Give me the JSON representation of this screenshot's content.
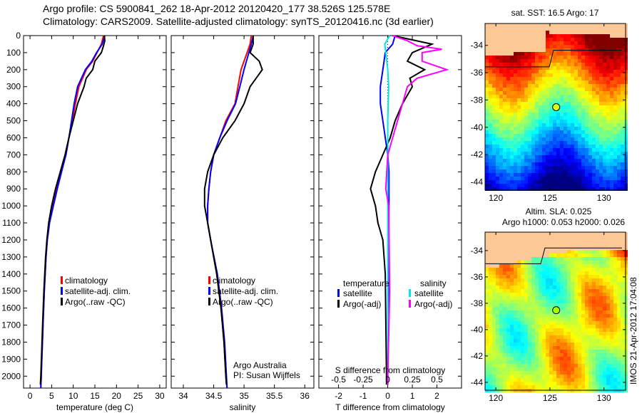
{
  "header": {
    "line1": "Argo profile: CS 5900841_262 18-Apr-2012 20120420_177 38.526S 125.578E",
    "line2": "Climatology: CARS2009. Satellite-adjusted climatology: synTS_20120416.nc (3d earlier)"
  },
  "credit": "IMOS 21-Apr-2012 17:04:08",
  "chart_data": [
    {
      "type": "line",
      "id": "temperature",
      "xlabel": "temperature (deg C)",
      "ylabel": "depth",
      "xlim": [
        -1.5,
        31.5
      ],
      "ylim": [
        2070,
        0
      ],
      "xticks": [
        0,
        5,
        10,
        15,
        20,
        25,
        30
      ],
      "yticks": [
        0,
        100,
        200,
        300,
        400,
        500,
        600,
        700,
        800,
        900,
        1000,
        1100,
        1200,
        1300,
        1400,
        1500,
        1600,
        1700,
        1800,
        1900,
        2000
      ],
      "legend": [
        "climatology",
        "satellite-adj. clim.",
        "Argo(..raw -QC)"
      ],
      "legend_position": "lower-right",
      "series": [
        {
          "name": "climatology",
          "color": "#ff0000",
          "depth": [
            0,
            50,
            100,
            150,
            200,
            300,
            400,
            500,
            600,
            700,
            800,
            900,
            1000,
            1100,
            1200,
            1300,
            1500,
            1700,
            2000,
            2070
          ],
          "values": [
            17,
            16.5,
            15.5,
            14.5,
            13,
            11.3,
            10.5,
            9.8,
            9,
            8.3,
            7.2,
            6.2,
            5.3,
            4.5,
            4,
            3.7,
            3.3,
            3,
            2.6,
            2.5
          ]
        },
        {
          "name": "satellite-adj. clim.",
          "color": "#0000ff",
          "depth": [
            0,
            50,
            100,
            150,
            200,
            300,
            400,
            500,
            600,
            700,
            800,
            900,
            1000,
            1100,
            1200,
            1300,
            1500,
            1700,
            2000,
            2070
          ],
          "values": [
            17.3,
            16.7,
            15.4,
            14.3,
            12.8,
            11.0,
            10.2,
            9.6,
            9,
            8.3,
            7.3,
            6.3,
            5.4,
            4.5,
            4,
            3.7,
            3.3,
            3,
            2.6,
            2.5
          ]
        },
        {
          "name": "Argo(..raw -QC)",
          "color": "#000000",
          "depth": [
            0,
            30,
            60,
            100,
            150,
            200,
            250,
            300,
            400,
            500,
            600,
            700,
            800,
            900,
            1000,
            1100,
            1200,
            1300,
            1500,
            1700,
            2000,
            2050
          ],
          "values": [
            17.2,
            17.3,
            17,
            16.5,
            15,
            14.5,
            13,
            12.5,
            11,
            10,
            9,
            8.1,
            7,
            5.9,
            5.0,
            4.3,
            3.9,
            3.6,
            3.2,
            2.9,
            2.5,
            2.4
          ]
        }
      ]
    },
    {
      "type": "line",
      "id": "salinity",
      "xlabel": "salinity",
      "xlim": [
        33.8,
        36.15
      ],
      "ylim": [
        2070,
        0
      ],
      "xticks": [
        34,
        34.5,
        35,
        35.5,
        36
      ],
      "legend": [
        "climatology",
        "satellite-adj. clim.",
        "Argo(..raw -QC)"
      ],
      "legend_position": "lower-right",
      "annotation": [
        "Argo Australia",
        "PI: Susan Wijffels"
      ],
      "series": [
        {
          "name": "climatology",
          "color": "#ff0000",
          "depth": [
            0,
            50,
            100,
            200,
            300,
            400,
            500,
            600,
            700,
            800,
            900,
            1000,
            1100,
            1200,
            1400,
            1600,
            1800,
            2000,
            2070
          ],
          "values": [
            35.12,
            35.1,
            35.05,
            34.95,
            34.9,
            34.85,
            34.7,
            34.6,
            34.5,
            34.45,
            34.42,
            34.4,
            34.4,
            34.45,
            34.55,
            34.62,
            34.67,
            34.7,
            34.72
          ]
        },
        {
          "name": "satellite-adj. clim.",
          "color": "#0000ff",
          "depth": [
            0,
            50,
            100,
            200,
            300,
            400,
            500,
            600,
            700,
            800,
            900,
            1000,
            1100,
            1200,
            1400,
            1600,
            1800,
            2000,
            2070
          ],
          "values": [
            35.15,
            35.12,
            35.08,
            35.0,
            34.93,
            34.86,
            34.72,
            34.6,
            34.5,
            34.45,
            34.42,
            34.4,
            34.4,
            34.45,
            34.56,
            34.63,
            34.68,
            34.71,
            34.72
          ]
        },
        {
          "name": "Argo(..raw -QC)",
          "color": "#000000",
          "depth": [
            0,
            50,
            100,
            150,
            200,
            250,
            300,
            400,
            500,
            600,
            700,
            800,
            900,
            1000,
            1100,
            1200,
            1400,
            1600,
            1800,
            2000,
            2050
          ],
          "values": [
            35.15,
            35.15,
            35.1,
            35.25,
            35.3,
            35.2,
            35.1,
            35.0,
            34.85,
            34.65,
            34.5,
            34.4,
            34.35,
            34.35,
            34.4,
            34.45,
            34.55,
            34.62,
            34.67,
            34.7,
            34.71
          ]
        }
      ]
    },
    {
      "type": "line",
      "id": "difference",
      "xlabel": "T difference from climatology",
      "x2label": "S difference from climatology",
      "xlim": [
        -2.8,
        3.0
      ],
      "ylim": [
        2070,
        0
      ],
      "xticks": [
        -2,
        -1,
        0,
        1,
        2
      ],
      "x2ticks": [
        -0.5,
        -0.25,
        0,
        0.25,
        0.5
      ],
      "x2tick_labels": [
        "-0.5",
        "-0.25",
        "0",
        "0.25",
        "0.5"
      ],
      "legend_groups": [
        {
          "title": "temperature",
          "items": [
            {
              "label": "satellite",
              "color": "#0000ff"
            },
            {
              "label": "Argo(-adj)",
              "color": "#000000"
            }
          ]
        },
        {
          "title": "salinity",
          "items": [
            {
              "label": "satellite",
              "color": "#00e5ee"
            },
            {
              "label": "Argo(-adj)",
              "color": "#ff00ff"
            }
          ]
        }
      ],
      "series": [
        {
          "name": "temperature satellite",
          "color": "#0000ff",
          "unit": "T",
          "depth": [
            0,
            50,
            100,
            200,
            300,
            400,
            500,
            600,
            700,
            800,
            1000,
            1500,
            2000,
            2050
          ],
          "values": [
            0.3,
            0.2,
            -0.1,
            -0.2,
            -0.3,
            -0.3,
            -0.2,
            -0.1,
            0,
            0.05,
            0.05,
            0.03,
            0,
            0
          ]
        },
        {
          "name": "temperature Argo(-adj)",
          "color": "#000000",
          "unit": "T",
          "depth": [
            0,
            50,
            100,
            150,
            200,
            250,
            300,
            400,
            500,
            600,
            700,
            800,
            900,
            1000,
            1100,
            1200,
            1400,
            2000,
            2050
          ],
          "values": [
            0.2,
            1.8,
            1.0,
            0.8,
            1.5,
            0.9,
            1.0,
            0.6,
            0.3,
            0.1,
            -0.2,
            -0.5,
            -0.7,
            -0.5,
            -0.4,
            -0.2,
            -0.1,
            -0.05,
            -0.05
          ]
        },
        {
          "name": "salinity satellite",
          "color": "#00e5ee",
          "unit": "S",
          "depth": [
            0,
            50,
            100,
            200,
            300,
            500,
            1000,
            1500,
            2000,
            2050
          ],
          "values": [
            0.02,
            -0.03,
            -0.02,
            0,
            0.01,
            0,
            0,
            0,
            0,
            0
          ]
        },
        {
          "name": "salinity Argo(-adj)",
          "color": "#ff00ff",
          "unit": "S",
          "depth": [
            0,
            30,
            60,
            80,
            100,
            150,
            200,
            250,
            300,
            400,
            500,
            700,
            900,
            1000,
            1500,
            2000,
            2050
          ],
          "values": [
            0.05,
            0.2,
            0.3,
            0.55,
            0.35,
            0.35,
            0.6,
            0.3,
            0.2,
            0.15,
            0.1,
            0,
            -0.02,
            0.01,
            0.02,
            0,
            0
          ]
        }
      ]
    },
    {
      "type": "heatmap",
      "id": "sst-map",
      "title": "sat. SST: 16.5 Argo: 17",
      "xlim": [
        119,
        132
      ],
      "ylim": [
        -44.6,
        -32.4
      ],
      "xticks": [
        120,
        125,
        130
      ],
      "yticks": [
        -34,
        -36,
        -38,
        -40,
        -42,
        -44
      ],
      "marker": {
        "lon": 125.578,
        "lat": -38.526
      }
    },
    {
      "type": "heatmap",
      "id": "sla-map",
      "title": "Altim. SLA: 0.025",
      "subtitle": "Argo h1000: 0.053 h2000: 0.026",
      "xlim": [
        119,
        132
      ],
      "ylim": [
        -44.6,
        -32.6
      ],
      "xticks": [
        120,
        125,
        130
      ],
      "yticks": [
        -34,
        -36,
        -38,
        -40,
        -42,
        -44
      ],
      "marker": {
        "lon": 125.578,
        "lat": -38.526
      }
    }
  ]
}
